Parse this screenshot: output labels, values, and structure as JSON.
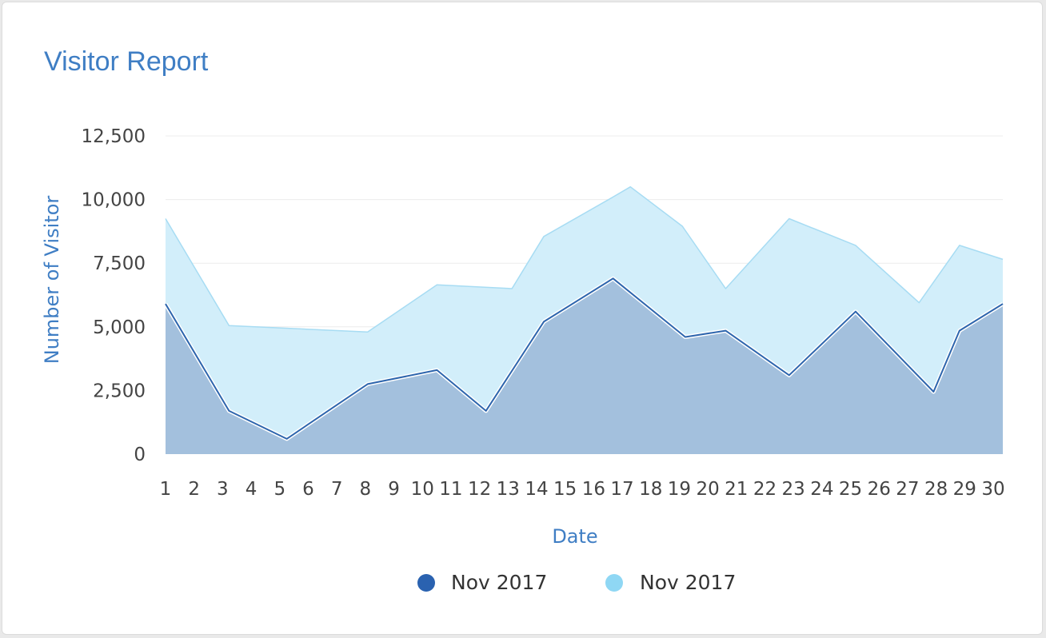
{
  "card": {
    "title": "Visitor Report"
  },
  "colors": {
    "accent": "#3f7ec4",
    "series1_fill": "#a3c0dd",
    "series1_line": "#2d65ad",
    "series1_dot": "#2a62b0",
    "series2_fill": "#d2eefa",
    "series2_line": "#a7dcf3",
    "series2_dot": "#8fd7f4",
    "grid": "#ececec"
  },
  "chart_data": {
    "type": "area",
    "title": "Visitor Report",
    "xlabel": "Date",
    "ylabel": "Number of Visitor",
    "ylim": [
      0,
      12500
    ],
    "yticks": [
      "0",
      "2,500",
      "5,000",
      "7,500",
      "10,000",
      "12,500"
    ],
    "ytick_values": [
      0,
      2500,
      5000,
      7500,
      10000,
      12500
    ],
    "xlim": [
      1,
      30
    ],
    "xticks": [
      "1",
      "2",
      "3",
      "4",
      "5",
      "6",
      "7",
      "8",
      "9",
      "10",
      "11",
      "12",
      "13",
      "14",
      "15",
      "16",
      "17",
      "18",
      "19",
      "20",
      "21",
      "22",
      "23",
      "24",
      "25",
      "26",
      "27",
      "28",
      "29",
      "30"
    ],
    "grid": true,
    "legend_position": "bottom-center",
    "series": [
      {
        "name": "Nov 2017",
        "x": [
          1,
          3.2,
          5.2,
          8,
          10.4,
          12.1,
          14.1,
          16.5,
          19,
          20.4,
          22.6,
          24.9,
          27.6,
          28.5,
          30
        ],
        "values": [
          5900,
          1700,
          600,
          2750,
          3300,
          1700,
          5200,
          6900,
          4600,
          4850,
          3100,
          5600,
          2450,
          4850,
          5900
        ]
      },
      {
        "name": "Nov 2017",
        "x": [
          1,
          3.2,
          8,
          10.4,
          13,
          14.1,
          16.5,
          17.1,
          18.9,
          20.4,
          22.6,
          24.9,
          27.1,
          28.5,
          30
        ],
        "values": [
          9250,
          5050,
          4800,
          6650,
          6500,
          8550,
          10100,
          10500,
          8950,
          6500,
          9250,
          8200,
          5950,
          8200,
          7650
        ]
      }
    ]
  }
}
